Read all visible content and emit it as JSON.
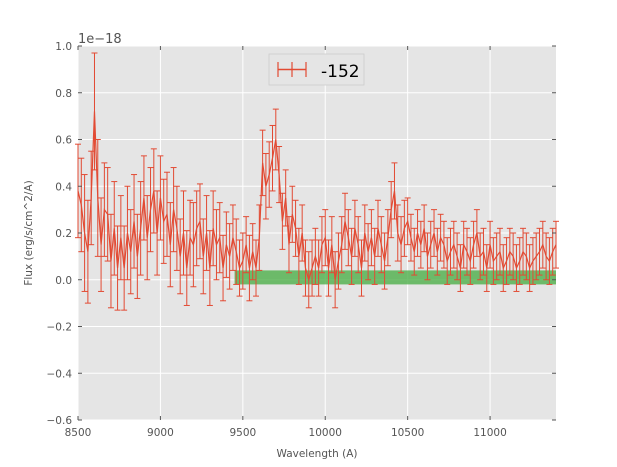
{
  "chart_data": {
    "type": "line",
    "title": "",
    "xlabel": "Wavelength (A)",
    "ylabel": "Flux (erg/s/cm^2/A)",
    "offset_text": "1e−18",
    "y_scale": 1e-18,
    "xlim": [
      8500,
      11400
    ],
    "ylim": [
      -0.6,
      1.0
    ],
    "x_ticks": [
      8500,
      9000,
      9500,
      10000,
      10500,
      11000
    ],
    "x_tick_labels": [
      "8500",
      "9000",
      "9500",
      "10000",
      "10500",
      "11000"
    ],
    "y_ticks": [
      -0.6,
      -0.4,
      -0.2,
      0.0,
      0.2,
      0.4,
      0.6,
      0.8,
      1.0
    ],
    "y_tick_labels": [
      "−0.6",
      "−0.4",
      "−0.2",
      "0.0",
      "0.2",
      "0.4",
      "0.6",
      "0.8",
      "1.0"
    ],
    "grid": true,
    "legend": {
      "position": "top-center",
      "entries": [
        "-152"
      ]
    },
    "colors": {
      "series": "#e24a33",
      "band": "#4daf4a",
      "background": "#e5e5e5",
      "grid": "#ffffff"
    },
    "band": {
      "x_start": 9450,
      "x_end": 11400,
      "y_low": -0.02,
      "y_high": 0.04
    },
    "series": [
      {
        "name": "-152",
        "x": [
          8500,
          8520,
          8540,
          8560,
          8580,
          8600,
          8620,
          8640,
          8660,
          8680,
          8700,
          8720,
          8740,
          8760,
          8780,
          8800,
          8820,
          8840,
          8860,
          8880,
          8900,
          8920,
          8940,
          8960,
          8980,
          9000,
          9020,
          9040,
          9060,
          9080,
          9100,
          9120,
          9140,
          9160,
          9180,
          9200,
          9220,
          9240,
          9260,
          9280,
          9300,
          9320,
          9340,
          9360,
          9380,
          9400,
          9420,
          9440,
          9460,
          9480,
          9500,
          9520,
          9540,
          9560,
          9580,
          9600,
          9620,
          9640,
          9660,
          9680,
          9700,
          9720,
          9740,
          9760,
          9780,
          9800,
          9820,
          9840,
          9860,
          9880,
          9900,
          9920,
          9940,
          9960,
          9980,
          10000,
          10020,
          10040,
          10060,
          10080,
          10100,
          10120,
          10140,
          10160,
          10180,
          10200,
          10220,
          10240,
          10260,
          10280,
          10300,
          10320,
          10340,
          10360,
          10380,
          10400,
          10420,
          10440,
          10460,
          10480,
          10500,
          10520,
          10540,
          10560,
          10580,
          10600,
          10620,
          10640,
          10660,
          10680,
          10700,
          10720,
          10740,
          10760,
          10780,
          10800,
          10820,
          10840,
          10860,
          10880,
          10900,
          10920,
          10940,
          10960,
          10980,
          11000,
          11020,
          11040,
          11060,
          11080,
          11100,
          11120,
          11140,
          11160,
          11180,
          11200,
          11220,
          11240,
          11260,
          11280,
          11300,
          11320,
          11340,
          11360,
          11380,
          11400
        ],
        "y": [
          0.38,
          0.32,
          0.2,
          0.12,
          0.35,
          0.72,
          0.35,
          0.15,
          0.3,
          0.28,
          0.08,
          0.22,
          0.05,
          0.18,
          0.05,
          0.2,
          0.12,
          0.25,
          0.1,
          0.22,
          0.35,
          0.18,
          0.3,
          0.38,
          0.2,
          0.35,
          0.25,
          0.28,
          0.15,
          0.3,
          0.22,
          0.1,
          0.2,
          0.05,
          0.18,
          0.15,
          0.22,
          0.25,
          0.1,
          0.2,
          0.05,
          0.22,
          0.15,
          0.18,
          0.05,
          0.15,
          0.1,
          0.18,
          0.12,
          0.05,
          0.08,
          0.15,
          0.05,
          0.12,
          0.05,
          0.18,
          0.5,
          0.4,
          0.45,
          0.52,
          0.6,
          0.45,
          0.25,
          0.35,
          0.15,
          0.28,
          0.22,
          0.1,
          0.2,
          0.05,
          0.0,
          0.05,
          0.1,
          0.05,
          0.15,
          0.18,
          0.05,
          0.15,
          0.0,
          0.08,
          0.15,
          0.25,
          0.18,
          0.1,
          0.22,
          0.15,
          0.05,
          0.2,
          0.12,
          0.18,
          0.1,
          0.22,
          0.15,
          0.08,
          0.18,
          0.3,
          0.38,
          0.2,
          0.15,
          0.22,
          0.25,
          0.18,
          0.12,
          0.2,
          0.15,
          0.22,
          0.1,
          0.15,
          0.2,
          0.12,
          0.18,
          0.15,
          0.08,
          0.12,
          0.15,
          0.1,
          0.05,
          0.15,
          0.12,
          0.08,
          0.15,
          0.2,
          0.1,
          0.12,
          0.05,
          0.15,
          0.08,
          0.1,
          0.12,
          0.05,
          0.08,
          0.12,
          0.1,
          0.05,
          0.08,
          0.12,
          0.1,
          0.05,
          0.08,
          0.1,
          0.12,
          0.15,
          0.1,
          0.08,
          0.12,
          0.15
        ],
        "yerr": [
          0.2,
          0.2,
          0.25,
          0.22,
          0.2,
          0.25,
          0.25,
          0.2,
          0.2,
          0.2,
          0.2,
          0.2,
          0.18,
          0.18,
          0.18,
          0.2,
          0.18,
          0.2,
          0.18,
          0.2,
          0.18,
          0.18,
          0.18,
          0.18,
          0.18,
          0.18,
          0.18,
          0.18,
          0.18,
          0.18,
          0.18,
          0.16,
          0.18,
          0.16,
          0.16,
          0.18,
          0.16,
          0.16,
          0.16,
          0.16,
          0.16,
          0.16,
          0.15,
          0.15,
          0.14,
          0.14,
          0.14,
          0.14,
          0.14,
          0.12,
          0.12,
          0.12,
          0.14,
          0.12,
          0.12,
          0.14,
          0.14,
          0.14,
          0.14,
          0.14,
          0.13,
          0.12,
          0.12,
          0.12,
          0.12,
          0.12,
          0.12,
          0.12,
          0.12,
          0.12,
          0.12,
          0.12,
          0.12,
          0.12,
          0.12,
          0.12,
          0.12,
          0.12,
          0.12,
          0.12,
          0.12,
          0.12,
          0.12,
          0.12,
          0.12,
          0.12,
          0.12,
          0.12,
          0.12,
          0.12,
          0.12,
          0.12,
          0.12,
          0.12,
          0.12,
          0.12,
          0.12,
          0.12,
          0.12,
          0.12,
          0.1,
          0.1,
          0.1,
          0.1,
          0.1,
          0.1,
          0.1,
          0.1,
          0.1,
          0.1,
          0.1,
          0.1,
          0.1,
          0.1,
          0.1,
          0.1,
          0.1,
          0.1,
          0.1,
          0.1,
          0.1,
          0.1,
          0.1,
          0.1,
          0.1,
          0.1,
          0.1,
          0.1,
          0.1,
          0.1,
          0.1,
          0.1,
          0.1,
          0.1,
          0.1,
          0.1,
          0.1,
          0.1,
          0.1,
          0.1,
          0.1,
          0.1,
          0.1,
          0.1,
          0.1,
          0.1
        ]
      }
    ]
  }
}
